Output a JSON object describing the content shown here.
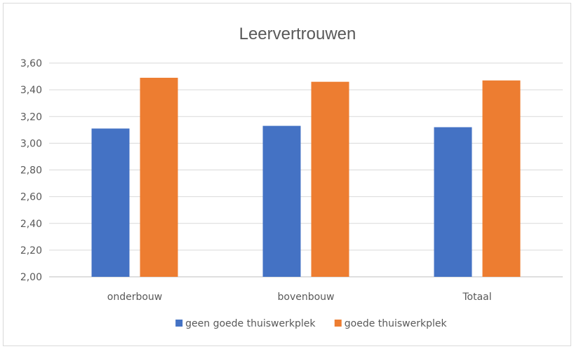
{
  "chart_data": {
    "type": "bar",
    "title": "Leervertrouwen",
    "xlabel": "",
    "ylabel": "",
    "categories": [
      "onderbouw",
      "bovenbouw",
      "Totaal"
    ],
    "series": [
      {
        "name": "geen goede thuiswerkplek",
        "color": "#4472C4",
        "values": [
          3.11,
          3.13,
          3.12
        ]
      },
      {
        "name": "goede thuiswerkplek",
        "color": "#ED7D31",
        "values": [
          3.49,
          3.46,
          3.47
        ]
      }
    ],
    "ylim": [
      2.0,
      3.6
    ],
    "yticks": [
      "2,00",
      "2,20",
      "2,40",
      "2,60",
      "2,80",
      "3,00",
      "3,20",
      "3,40",
      "3,60"
    ],
    "grid": true,
    "legend": "bottom"
  }
}
